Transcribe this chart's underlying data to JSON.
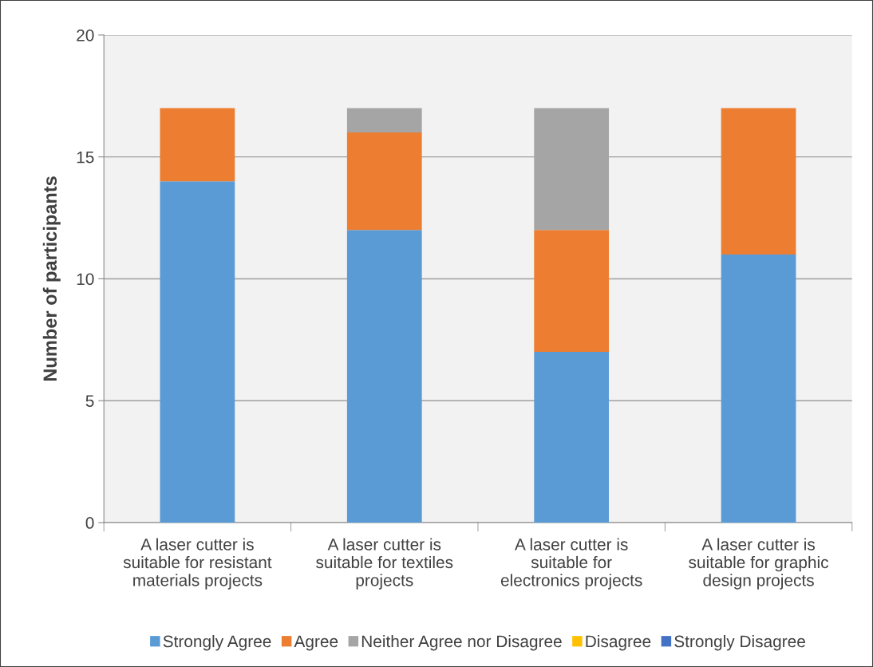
{
  "chart_data": {
    "type": "bar",
    "stacked": true,
    "ylabel": "Number of participants",
    "categories": [
      "A laser cutter is\nsuitable for resistant\nmaterials projects",
      "A laser cutter is\nsuitable for textiles\nprojects",
      "A laser cutter is\nsuitable for\nelectronics projects",
      "A laser cutter is\nsuitable for graphic\ndesign projects"
    ],
    "series": [
      {
        "name": "Strongly Agree",
        "color": "#5b9bd5",
        "values": [
          14,
          12,
          7,
          11
        ]
      },
      {
        "name": "Agree",
        "color": "#ed7d31",
        "values": [
          3,
          4,
          5,
          6
        ]
      },
      {
        "name": "Neither Agree nor Disagree",
        "color": "#a5a5a5",
        "values": [
          0,
          1,
          5,
          0
        ]
      },
      {
        "name": "Disagree",
        "color": "#ffc000",
        "values": [
          0,
          0,
          0,
          0
        ]
      },
      {
        "name": "Strongly Disagree",
        "color": "#4472c4",
        "values": [
          0,
          0,
          0,
          0
        ]
      }
    ],
    "ylim": [
      0,
      20
    ],
    "yticks": [
      0,
      5,
      10,
      15,
      20
    ],
    "grid": "y",
    "legend": "bottom"
  }
}
